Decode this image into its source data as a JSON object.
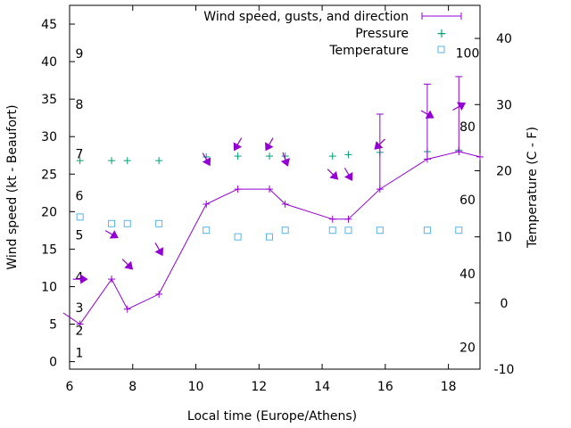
{
  "chart_data": {
    "type": "line",
    "xlabel": "Local time (Europe/Athens)",
    "ylabel": "Wind speed (kt - Beaufort)",
    "y2label": "Temperature (C - F)",
    "xlim": [
      6,
      19
    ],
    "ylim": [
      -1,
      47.5
    ],
    "y2lim": [
      -10,
      45
    ],
    "x_ticks": [
      "6",
      "8",
      "10",
      "12",
      "14",
      "16",
      "18"
    ],
    "y_ticks": [
      "0",
      "5",
      "10",
      "15",
      "20",
      "25",
      "30",
      "35",
      "40",
      "45"
    ],
    "y2_ticks": [
      "-10",
      "0",
      "10",
      "20",
      "30",
      "40"
    ],
    "beaufort_labels": [
      {
        "text": "1",
        "y": 1.2
      },
      {
        "text": "2",
        "y": 4.2
      },
      {
        "text": "3",
        "y": 7.2
      },
      {
        "text": "4",
        "y": 11.3
      },
      {
        "text": "5",
        "y": 16.9
      },
      {
        "text": "6",
        "y": 22.1
      },
      {
        "text": "7",
        "y": 27.7
      },
      {
        "text": "8",
        "y": 34.3
      },
      {
        "text": "9",
        "y": 41.1
      }
    ],
    "fahrenheit_labels": [
      {
        "text": "20",
        "y": -6.7
      },
      {
        "text": "40",
        "y": 4.4
      },
      {
        "text": "60",
        "y": 15.6
      },
      {
        "text": "80",
        "y": 26.7
      },
      {
        "text": "100",
        "y": 37.8
      }
    ],
    "legend_position": "top-right",
    "series": [
      {
        "name": "Wind speed, gusts, and direction",
        "color": "#9400d3",
        "x": [
          5.8,
          6.33,
          7.33,
          7.83,
          8.83,
          10.33,
          11.33,
          12.33,
          12.83,
          14.33,
          14.83,
          15.83,
          17.33,
          18.33,
          19.0
        ],
        "values": [
          6.5,
          5,
          11,
          7,
          9,
          21,
          23,
          23,
          21,
          19,
          19,
          23,
          27,
          28,
          27.3
        ],
        "gusts": [
          null,
          null,
          null,
          null,
          null,
          null,
          null,
          null,
          null,
          null,
          null,
          33,
          37,
          38,
          null
        ],
        "direction_deg": [
          null,
          270,
          300,
          315,
          330,
          330,
          30,
          30,
          340,
          315,
          330,
          45,
          300,
          240,
          null
        ]
      },
      {
        "name": "Pressure",
        "color": "#009e73",
        "x": [
          6.33,
          7.33,
          7.83,
          8.83,
          10.33,
          11.33,
          12.33,
          12.83,
          14.33,
          14.83,
          15.83,
          17.33,
          18.33
        ],
        "values": [
          26.8,
          26.8,
          26.8,
          26.8,
          27.3,
          27.4,
          27.4,
          27.4,
          27.4,
          27.6,
          27.9,
          28.0,
          28.2
        ]
      },
      {
        "name": "Temperature",
        "axis": "y2",
        "color": "#56b4e9",
        "x": [
          6.33,
          7.33,
          7.83,
          8.83,
          10.33,
          11.33,
          12.33,
          12.83,
          14.33,
          14.83,
          15.83,
          17.33,
          18.33
        ],
        "values": [
          13,
          12,
          12,
          12,
          11,
          10,
          10,
          11,
          11,
          11,
          11,
          11,
          11
        ]
      }
    ]
  }
}
